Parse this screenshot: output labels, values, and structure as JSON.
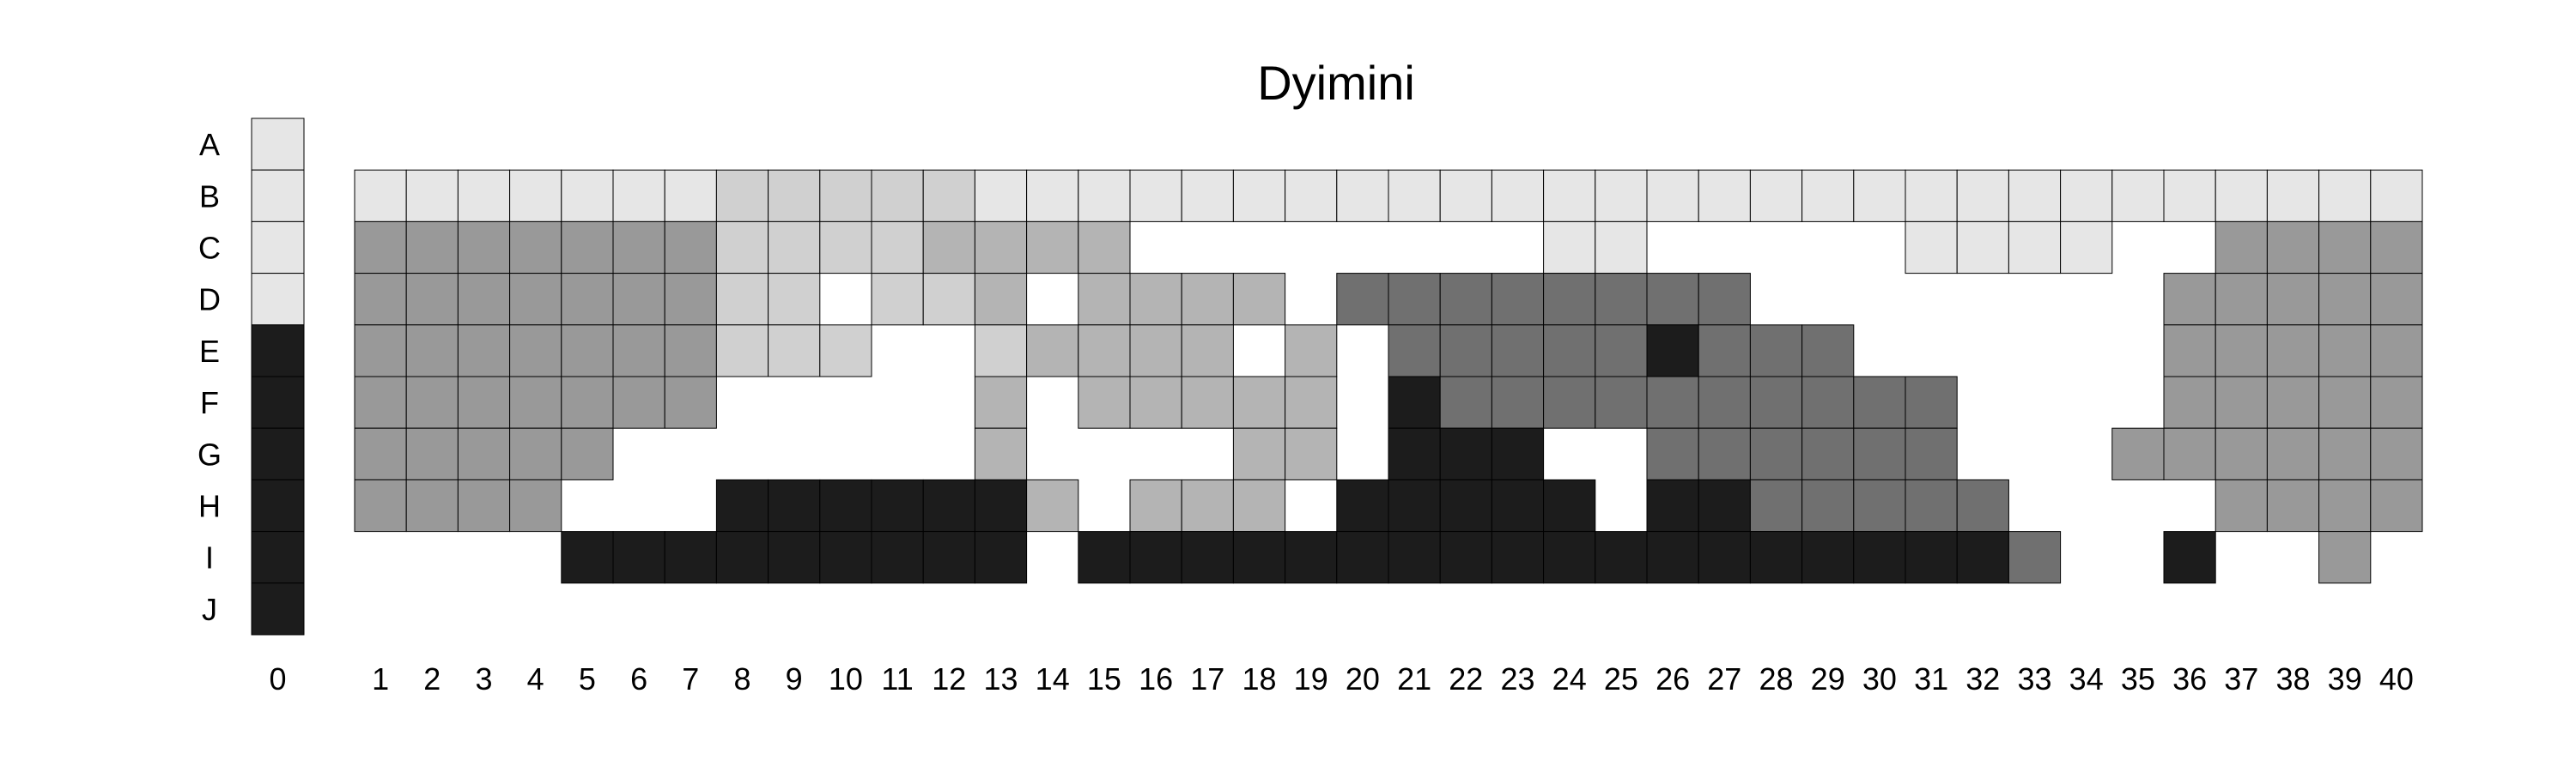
{
  "chart_data": {
    "type": "heatmap",
    "title": "Dyimini",
    "row_labels": [
      "A",
      "B",
      "C",
      "D",
      "E",
      "F",
      "G",
      "H",
      "I",
      "J"
    ],
    "column_labels": [
      "0",
      "1",
      "2",
      "3",
      "4",
      "5",
      "6",
      "7",
      "8",
      "9",
      "10",
      "11",
      "12",
      "13",
      "14",
      "15",
      "16",
      "17",
      "18",
      "19",
      "20",
      "21",
      "22",
      "23",
      "24",
      "25",
      "26",
      "27",
      "28",
      "29",
      "30",
      "31",
      "32",
      "33",
      "34",
      "35",
      "36",
      "37",
      "38",
      "39",
      "40"
    ],
    "legend": {
      "column": "0",
      "values": [
        {
          "row": "A",
          "level": "L1"
        },
        {
          "row": "B",
          "level": "L1"
        },
        {
          "row": "C",
          "level": "L1"
        },
        {
          "row": "D",
          "level": "L1"
        },
        {
          "row": "E",
          "level": "L6"
        },
        {
          "row": "F",
          "level": "L6"
        },
        {
          "row": "G",
          "level": "L6"
        },
        {
          "row": "H",
          "level": "L6"
        },
        {
          "row": "I",
          "level": "L6"
        },
        {
          "row": "J",
          "level": "L6"
        }
      ]
    },
    "level_colors": {
      "L1": "#e6e6e6",
      "L2": "#d0d0d0",
      "L3": "#b4b4b4",
      "L4": "#999999",
      "L5": "#707070",
      "L6": "#1c1c1c"
    },
    "grid_rows": {
      "B": "1111111222221111111111111111111111111111",
      "C": "4444444222233330000000011000001111004444",
      "D": "4444444220223033330555555550000000044444",
      "E": "4444444222002333303055555655500000044444",
      "F": "4444444000003033333065555555555000044444",
      "G": "4444400000003000033066600555555000444444",
      "H": "4444000666666303330666660665555500004444",
      "I": "0000666666666066666666666666666650060040",
      "J": "0000000000000000000000000000000000000000"
    },
    "grid_encoding": "Each row string lists columns 1 to 40; 0 = empty, 1-6 = level L1-L6"
  }
}
